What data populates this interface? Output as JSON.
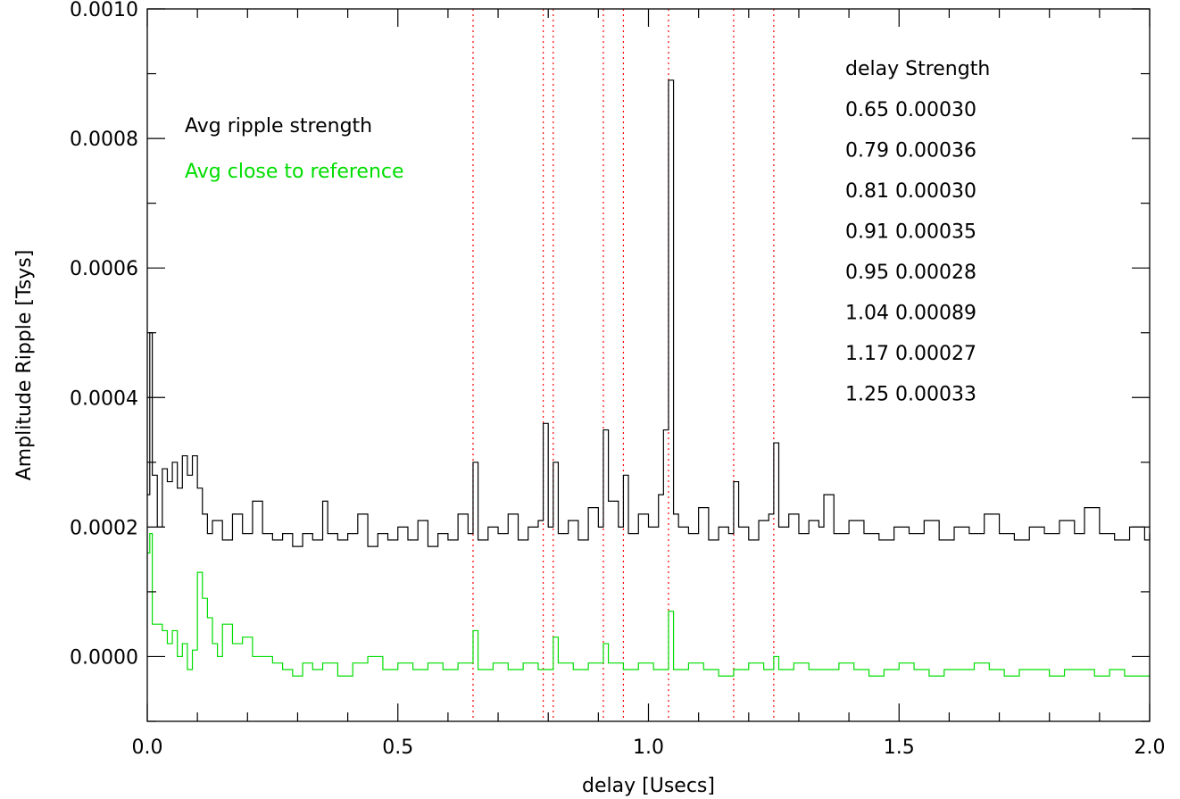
{
  "chart_data": {
    "type": "line",
    "title": "",
    "xlabel": "delay [Usecs]",
    "ylabel": "Amplitude Ripple [Tsys]",
    "xlim": [
      0.0,
      2.0
    ],
    "ylim": [
      -0.0001,
      0.001
    ],
    "x_ticks": [
      "0.0",
      "0.5",
      "1.0",
      "1.5",
      "2.0"
    ],
    "y_ticks": [
      "0.0000",
      "0.0002",
      "0.0004",
      "0.0006",
      "0.0008",
      "0.0010"
    ],
    "grid": false,
    "legend": {
      "position": "top-left",
      "entries": [
        {
          "label": "Avg ripple strength",
          "color": "#000000"
        },
        {
          "label": "Avg close to reference",
          "color": "#00dd00"
        }
      ]
    },
    "marker_lines": {
      "color": "#ff0000",
      "style": "dotted",
      "x": [
        0.65,
        0.79,
        0.81,
        0.91,
        0.95,
        1.04,
        1.17,
        1.25
      ]
    },
    "peaks_table": {
      "header": "delay Strength",
      "rows": [
        "0.65 0.00030",
        "0.79 0.00036",
        "0.81 0.00030",
        "0.91 0.00035",
        "0.95 0.00028",
        "1.04 0.00089",
        "1.17 0.00027",
        "1.25 0.00033"
      ]
    },
    "series": [
      {
        "name": "Avg ripple strength",
        "color": "#000000",
        "style": "step",
        "x": [
          0.0,
          0.005,
          0.01,
          0.02,
          0.03,
          0.04,
          0.05,
          0.06,
          0.07,
          0.08,
          0.09,
          0.1,
          0.11,
          0.12,
          0.13,
          0.15,
          0.17,
          0.19,
          0.21,
          0.23,
          0.25,
          0.27,
          0.29,
          0.31,
          0.33,
          0.35,
          0.36,
          0.38,
          0.4,
          0.42,
          0.44,
          0.46,
          0.48,
          0.5,
          0.52,
          0.54,
          0.56,
          0.58,
          0.6,
          0.62,
          0.64,
          0.65,
          0.66,
          0.68,
          0.7,
          0.72,
          0.74,
          0.76,
          0.78,
          0.79,
          0.8,
          0.81,
          0.82,
          0.84,
          0.86,
          0.88,
          0.9,
          0.91,
          0.92,
          0.94,
          0.95,
          0.96,
          0.98,
          1.0,
          1.02,
          1.03,
          1.04,
          1.05,
          1.06,
          1.08,
          1.1,
          1.12,
          1.14,
          1.16,
          1.17,
          1.18,
          1.2,
          1.22,
          1.24,
          1.25,
          1.26,
          1.28,
          1.3,
          1.32,
          1.34,
          1.35,
          1.37,
          1.4,
          1.43,
          1.46,
          1.49,
          1.52,
          1.55,
          1.58,
          1.61,
          1.64,
          1.67,
          1.7,
          1.73,
          1.76,
          1.79,
          1.82,
          1.85,
          1.87,
          1.9,
          1.93,
          1.96,
          1.99,
          2.0
        ],
        "y": [
          0.00025,
          0.0005,
          0.00028,
          0.0002,
          0.00029,
          0.00027,
          0.0003,
          0.00026,
          0.00031,
          0.00028,
          0.00031,
          0.00026,
          0.00022,
          0.00019,
          0.00021,
          0.00018,
          0.00022,
          0.00019,
          0.00024,
          0.00019,
          0.00018,
          0.00019,
          0.00017,
          0.00019,
          0.00018,
          0.00024,
          0.00019,
          0.00018,
          0.00019,
          0.00022,
          0.00017,
          0.00019,
          0.00018,
          0.0002,
          0.00018,
          0.00021,
          0.00017,
          0.00019,
          0.00018,
          0.00022,
          0.00019,
          0.0003,
          0.00018,
          0.0002,
          0.00019,
          0.00022,
          0.00018,
          0.0002,
          0.00021,
          0.00036,
          0.0002,
          0.0003,
          0.00019,
          0.00021,
          0.00018,
          0.00023,
          0.0002,
          0.00035,
          0.00024,
          0.0002,
          0.00028,
          0.00019,
          0.00022,
          0.0002,
          0.00025,
          0.00035,
          0.00089,
          0.00022,
          0.0002,
          0.00019,
          0.00023,
          0.00018,
          0.0002,
          0.00019,
          0.00027,
          0.0002,
          0.00018,
          0.00021,
          0.00022,
          0.00033,
          0.0002,
          0.00022,
          0.00019,
          0.00021,
          0.0002,
          0.00025,
          0.00019,
          0.00021,
          0.00019,
          0.00018,
          0.0002,
          0.00019,
          0.00021,
          0.00018,
          0.0002,
          0.00019,
          0.00022,
          0.00019,
          0.00018,
          0.0002,
          0.00019,
          0.00021,
          0.00019,
          0.00023,
          0.00019,
          0.00018,
          0.0002,
          0.00018,
          0.00019
        ]
      },
      {
        "name": "Avg close to reference",
        "color": "#00dd00",
        "style": "step",
        "x": [
          0.0,
          0.005,
          0.01,
          0.02,
          0.03,
          0.04,
          0.05,
          0.06,
          0.07,
          0.08,
          0.09,
          0.1,
          0.11,
          0.12,
          0.13,
          0.14,
          0.15,
          0.17,
          0.19,
          0.21,
          0.23,
          0.25,
          0.27,
          0.29,
          0.31,
          0.33,
          0.35,
          0.38,
          0.41,
          0.44,
          0.47,
          0.5,
          0.53,
          0.56,
          0.59,
          0.62,
          0.65,
          0.66,
          0.69,
          0.72,
          0.75,
          0.78,
          0.81,
          0.82,
          0.85,
          0.88,
          0.91,
          0.92,
          0.95,
          0.98,
          1.01,
          1.04,
          1.05,
          1.08,
          1.11,
          1.14,
          1.17,
          1.2,
          1.23,
          1.25,
          1.26,
          1.29,
          1.32,
          1.35,
          1.38,
          1.41,
          1.44,
          1.47,
          1.5,
          1.53,
          1.56,
          1.59,
          1.62,
          1.65,
          1.68,
          1.71,
          1.74,
          1.77,
          1.8,
          1.83,
          1.86,
          1.89,
          1.92,
          1.95,
          1.98,
          2.0
        ],
        "y": [
          0.00016,
          0.00019,
          5e-05,
          5e-05,
          4e-05,
          2e-05,
          4e-05,
          0.0,
          2e-05,
          -2e-05,
          1e-05,
          0.00013,
          9e-05,
          6e-05,
          2e-05,
          0.0,
          5e-05,
          2e-05,
          3e-05,
          0.0,
          0.0,
          -1e-05,
          -2e-05,
          -3e-05,
          -1e-05,
          -2e-05,
          -1e-05,
          -3e-05,
          -1e-05,
          0.0,
          -2e-05,
          -1e-05,
          -2e-05,
          -1e-05,
          -2e-05,
          -1e-05,
          4e-05,
          -2e-05,
          -1e-05,
          -2e-05,
          -1e-05,
          -2e-05,
          3e-05,
          -1e-05,
          -2e-05,
          -1e-05,
          2e-05,
          -1e-05,
          -2e-05,
          -1e-05,
          -2e-05,
          7e-05,
          -2e-05,
          -1e-05,
          -2e-05,
          -3e-05,
          -2e-05,
          -1e-05,
          -2e-05,
          0.0,
          -2e-05,
          -1e-05,
          -2e-05,
          -2e-05,
          -1e-05,
          -2e-05,
          -3e-05,
          -2e-05,
          -1e-05,
          -2e-05,
          -3e-05,
          -2e-05,
          -2e-05,
          -1e-05,
          -2e-05,
          -3e-05,
          -2e-05,
          -2e-05,
          -3e-05,
          -2e-05,
          -2e-05,
          -3e-05,
          -2e-05,
          -3e-05,
          -3e-05,
          -3e-05
        ]
      }
    ]
  }
}
